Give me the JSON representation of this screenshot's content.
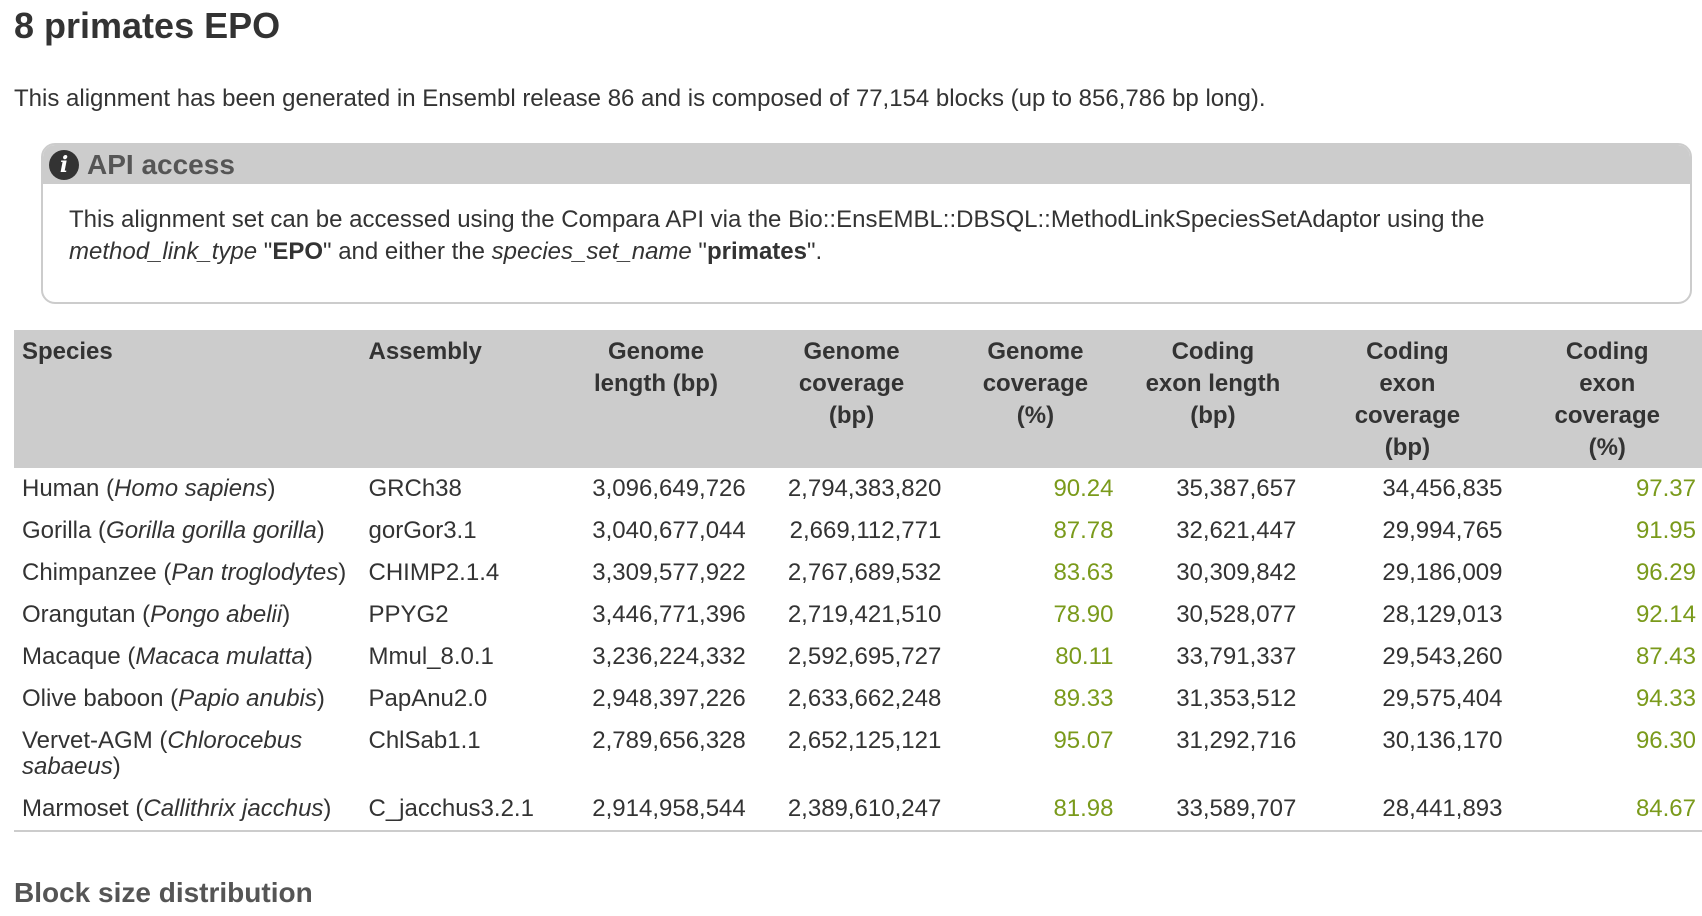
{
  "title": "8 primates EPO",
  "summary": "This alignment has been generated in Ensembl release 86 and is composed of 77,154 blocks (up to 856,786 bp long).",
  "api": {
    "icon": "info-icon",
    "title": "API access",
    "line1": "This alignment set can be accessed using the Compara API via the Bio::EnsEMBL::DBSQL::MethodLinkSpeciesSetAdaptor using the",
    "mlt_label": "method_link_type",
    "q1": " \"",
    "mlt_value": "EPO",
    "mid": "\" and either the ",
    "ssn_label": "species_set_name",
    "q2": " \"",
    "ssn_value": "primates",
    "end": "\"."
  },
  "table": {
    "headers": {
      "species": "Species",
      "assembly": "Assembly",
      "genome_length": [
        "Genome",
        "length (bp)"
      ],
      "genome_coverage_bp": [
        "Genome",
        "coverage",
        "(bp)"
      ],
      "genome_coverage_pct": [
        "Genome",
        "coverage",
        "(%)"
      ],
      "exon_length": [
        "Coding",
        "exon length",
        "(bp)"
      ],
      "exon_coverage_bp": [
        "Coding",
        "exon",
        "coverage",
        "(bp)"
      ],
      "exon_coverage_pct": [
        "Coding",
        "exon",
        "coverage",
        "(%)"
      ]
    },
    "rows": [
      {
        "common": "Human",
        "latin": "Homo sapiens",
        "assembly": "GRCh38",
        "genome_length": "3,096,649,726",
        "genome_cov_bp": "2,794,383,820",
        "genome_cov_pct": "90.24",
        "exon_length": "35,387,657",
        "exon_cov_bp": "34,456,835",
        "exon_cov_pct": "97.37"
      },
      {
        "common": "Gorilla",
        "latin": "Gorilla gorilla gorilla",
        "assembly": "gorGor3.1",
        "genome_length": "3,040,677,044",
        "genome_cov_bp": "2,669,112,771",
        "genome_cov_pct": "87.78",
        "exon_length": "32,621,447",
        "exon_cov_bp": "29,994,765",
        "exon_cov_pct": "91.95"
      },
      {
        "common": "Chimpanzee",
        "latin": "Pan troglodytes",
        "assembly": "CHIMP2.1.4",
        "genome_length": "3,309,577,922",
        "genome_cov_bp": "2,767,689,532",
        "genome_cov_pct": "83.63",
        "exon_length": "30,309,842",
        "exon_cov_bp": "29,186,009",
        "exon_cov_pct": "96.29"
      },
      {
        "common": "Orangutan",
        "latin": "Pongo abelii",
        "assembly": "PPYG2",
        "genome_length": "3,446,771,396",
        "genome_cov_bp": "2,719,421,510",
        "genome_cov_pct": "78.90",
        "exon_length": "30,528,077",
        "exon_cov_bp": "28,129,013",
        "exon_cov_pct": "92.14"
      },
      {
        "common": "Macaque",
        "latin": "Macaca mulatta",
        "assembly": "Mmul_8.0.1",
        "genome_length": "3,236,224,332",
        "genome_cov_bp": "2,592,695,727",
        "genome_cov_pct": "80.11",
        "exon_length": "33,791,337",
        "exon_cov_bp": "29,543,260",
        "exon_cov_pct": "87.43"
      },
      {
        "common": "Olive baboon",
        "latin": "Papio anubis",
        "assembly": "PapAnu2.0",
        "genome_length": "2,948,397,226",
        "genome_cov_bp": "2,633,662,248",
        "genome_cov_pct": "89.33",
        "exon_length": "31,353,512",
        "exon_cov_bp": "29,575,404",
        "exon_cov_pct": "94.33"
      },
      {
        "common": "Vervet-AGM",
        "latin": "Chlorocebus sabaeus",
        "assembly": "ChlSab1.1",
        "genome_length": "2,789,656,328",
        "genome_cov_bp": "2,652,125,121",
        "genome_cov_pct": "95.07",
        "exon_length": "31,292,716",
        "exon_cov_bp": "30,136,170",
        "exon_cov_pct": "96.30"
      },
      {
        "common": "Marmoset",
        "latin": "Callithrix jacchus",
        "assembly": "C_jacchus3.2.1",
        "genome_length": "2,914,958,544",
        "genome_cov_bp": "2,389,610,247",
        "genome_cov_pct": "81.98",
        "exon_length": "33,589,707",
        "exon_cov_bp": "28,441,893",
        "exon_cov_pct": "84.67"
      }
    ]
  },
  "block_size_heading": "Block size distribution",
  "colors": {
    "percent_green": "#7a9a1b",
    "header_gray": "#cccccc",
    "text": "#333333"
  }
}
